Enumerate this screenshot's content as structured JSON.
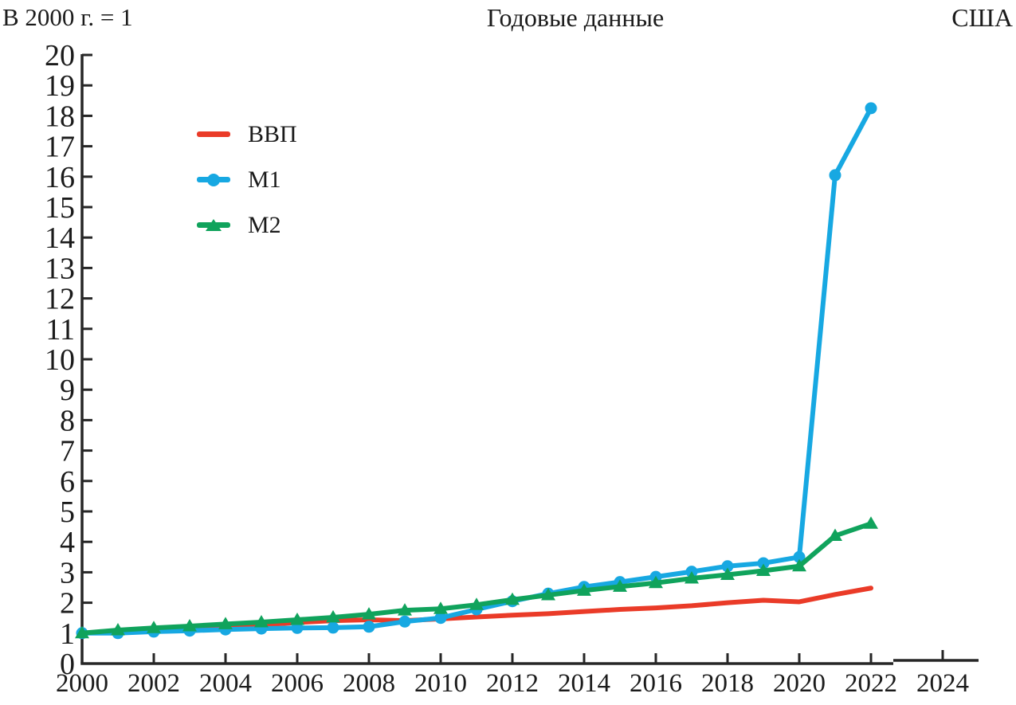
{
  "chart_data": {
    "type": "line",
    "title": "Годовые данные",
    "left_note": "В 2000 г. = 1",
    "right_note": "США",
    "xlabel": "",
    "ylabel": "",
    "xlim": [
      2000,
      2025
    ],
    "ylim": [
      0,
      20
    ],
    "x_tick_step": 2,
    "y_tick_step": 1,
    "grid": false,
    "legend_position": "upper-left-inside",
    "x": [
      2000,
      2001,
      2002,
      2003,
      2004,
      2005,
      2006,
      2007,
      2008,
      2009,
      2010,
      2011,
      2012,
      2013,
      2014,
      2015,
      2016,
      2017,
      2018,
      2019,
      2020,
      2021,
      2022
    ],
    "series": [
      {
        "name": "ВВП",
        "key": "gdp",
        "color": "#ea3b28",
        "marker": "none",
        "values": [
          1.0,
          1.03,
          1.07,
          1.12,
          1.19,
          1.27,
          1.35,
          1.41,
          1.44,
          1.41,
          1.47,
          1.53,
          1.59,
          1.64,
          1.71,
          1.78,
          1.83,
          1.9,
          2.0,
          2.08,
          2.03,
          2.27,
          2.48
        ]
      },
      {
        "name": "М1",
        "key": "m1",
        "color": "#17a8e2",
        "marker": "circle",
        "values": [
          1.0,
          1.0,
          1.05,
          1.08,
          1.12,
          1.15,
          1.17,
          1.18,
          1.21,
          1.38,
          1.5,
          1.78,
          2.05,
          2.3,
          2.52,
          2.68,
          2.85,
          3.02,
          3.2,
          3.3,
          3.5,
          16.05,
          18.25
        ]
      },
      {
        "name": "М2",
        "key": "m2",
        "color": "#10a35c",
        "marker": "triangle",
        "values": [
          1.0,
          1.1,
          1.17,
          1.23,
          1.3,
          1.36,
          1.44,
          1.52,
          1.62,
          1.75,
          1.8,
          1.93,
          2.1,
          2.25,
          2.4,
          2.53,
          2.65,
          2.8,
          2.92,
          3.05,
          3.2,
          4.2,
          4.6
        ]
      }
    ]
  },
  "legend": {
    "items": [
      {
        "label": "ВВП"
      },
      {
        "label": "М1"
      },
      {
        "label": "М2"
      }
    ]
  }
}
